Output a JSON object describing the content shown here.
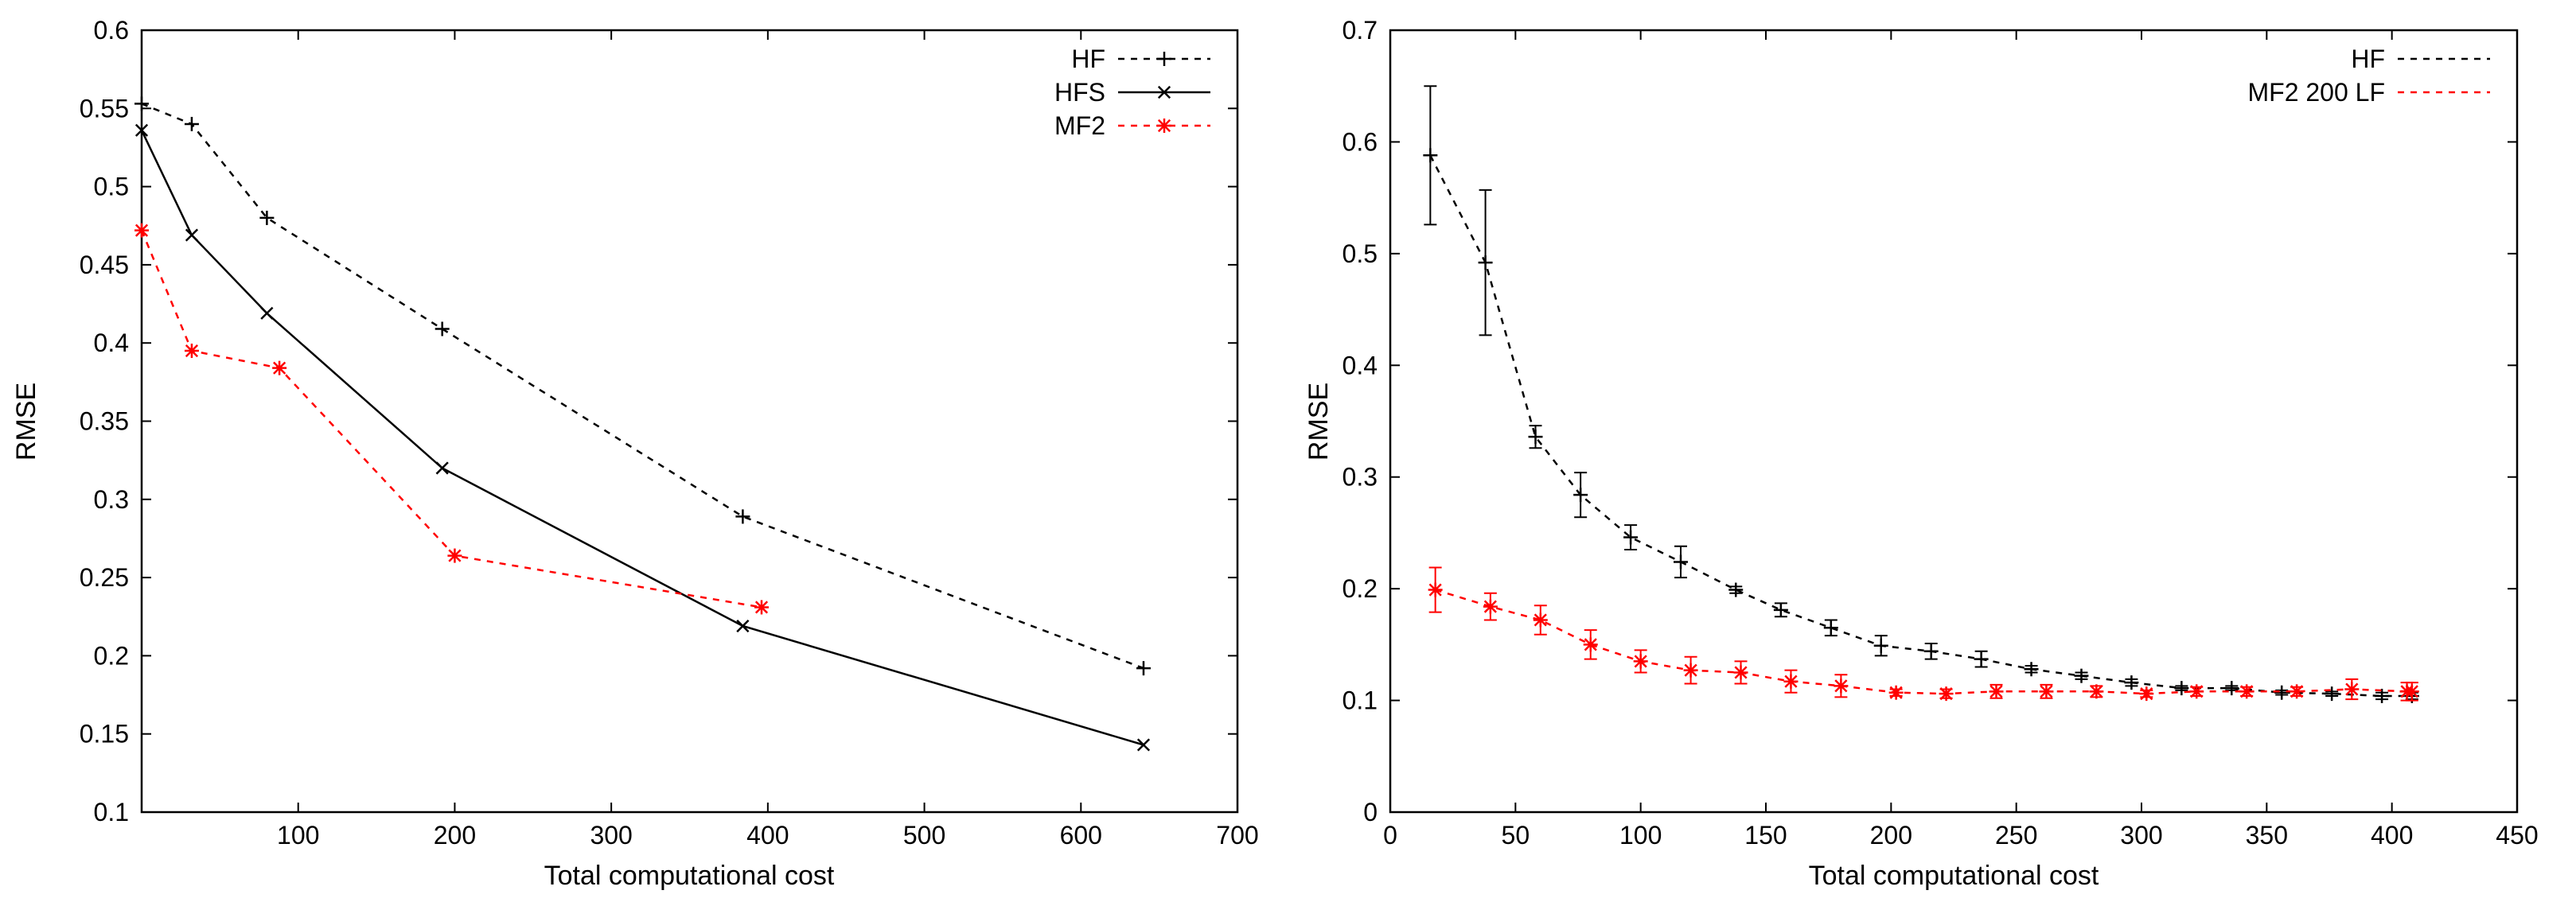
{
  "chart_data": [
    {
      "type": "line",
      "xlabel": "Total computational cost",
      "ylabel": "RMSE",
      "xlim": [
        0,
        700
      ],
      "ylim": [
        0.1,
        0.6
      ],
      "xticks": [
        100,
        200,
        300,
        400,
        500,
        600,
        700
      ],
      "yticks": [
        0.1,
        0.15,
        0.2,
        0.25,
        0.3,
        0.35,
        0.4,
        0.45,
        0.5,
        0.55,
        0.6
      ],
      "xtick_labels": [
        "100",
        "200",
        "300",
        "400",
        "500",
        "600",
        "700"
      ],
      "ytick_labels": [
        "0.1",
        "0.15",
        "0.2",
        "0.25",
        "0.3",
        "0.35",
        "0.4",
        "0.45",
        "0.5",
        "0.55",
        "0.6"
      ],
      "legend_position": "top-right",
      "series": [
        {
          "name": "HF",
          "color": "#000000",
          "dash": "dashed",
          "marker": "plus",
          "x": [
            0,
            32,
            80,
            192,
            384,
            640
          ],
          "y": [
            0.553,
            0.54,
            0.48,
            0.409,
            0.289,
            0.192
          ]
        },
        {
          "name": "HFS",
          "color": "#000000",
          "dash": "solid",
          "marker": "cross",
          "x": [
            0,
            32,
            80,
            192,
            384,
            640
          ],
          "y": [
            0.536,
            0.469,
            0.419,
            0.32,
            0.219,
            0.143
          ]
        },
        {
          "name": "MF2",
          "color": "#ff0000",
          "dash": "dashed",
          "marker": "star",
          "x": [
            0,
            32,
            88,
            200,
            396
          ],
          "y": [
            0.472,
            0.395,
            0.384,
            0.264,
            0.231
          ]
        }
      ]
    },
    {
      "type": "line",
      "xlabel": "Total computational cost",
      "ylabel": "RMSE",
      "xlim": [
        0,
        450
      ],
      "ylim": [
        0,
        0.7
      ],
      "xticks": [
        0,
        50,
        100,
        150,
        200,
        250,
        300,
        350,
        400,
        450
      ],
      "yticks": [
        0,
        0.1,
        0.2,
        0.3,
        0.4,
        0.5,
        0.6,
        0.7
      ],
      "xtick_labels": [
        "0",
        "50",
        "100",
        "150",
        "200",
        "250",
        "300",
        "350",
        "400",
        "450"
      ],
      "ytick_labels": [
        "0",
        "0.1",
        "0.2",
        "0.3",
        "0.4",
        "0.5",
        "0.6",
        "0.7"
      ],
      "legend_position": "top-right",
      "series": [
        {
          "name": "HF",
          "color": "#000000",
          "dash": "dashed",
          "marker": "plus",
          "x": [
            16,
            38,
            58,
            76,
            96,
            116,
            138,
            156,
            176,
            196,
            216,
            236,
            256,
            276,
            296,
            316,
            336,
            356,
            376,
            396,
            408
          ],
          "y": [
            0.588,
            0.492,
            0.336,
            0.284,
            0.246,
            0.224,
            0.199,
            0.181,
            0.165,
            0.149,
            0.144,
            0.137,
            0.128,
            0.122,
            0.116,
            0.111,
            0.111,
            0.107,
            0.106,
            0.104,
            0.104
          ],
          "err": [
            0.062,
            0.065,
            0.01,
            0.02,
            0.011,
            0.014,
            0.003,
            0.006,
            0.007,
            0.009,
            0.007,
            0.007,
            0.003,
            0.003,
            0.003,
            0.002,
            0.002,
            0.002,
            0.002,
            0.003,
            0.003
          ]
        },
        {
          "name": "MF2 200 LF",
          "color": "#ff0000",
          "dash": "dashed",
          "marker": "star",
          "x": [
            18,
            40,
            60,
            80,
            100,
            120,
            140,
            160,
            180,
            202,
            222,
            242,
            262,
            282,
            302,
            322,
            342,
            362,
            384,
            406,
            408
          ],
          "y": [
            0.199,
            0.184,
            0.172,
            0.15,
            0.135,
            0.127,
            0.125,
            0.117,
            0.113,
            0.107,
            0.106,
            0.108,
            0.108,
            0.108,
            0.106,
            0.108,
            0.108,
            0.108,
            0.11,
            0.108,
            0.108
          ],
          "err": [
            0.02,
            0.012,
            0.013,
            0.013,
            0.01,
            0.012,
            0.01,
            0.01,
            0.01,
            0.003,
            0.004,
            0.006,
            0.006,
            0.005,
            0.003,
            0.004,
            0.004,
            0.004,
            0.009,
            0.008,
            0.008
          ]
        }
      ]
    }
  ]
}
